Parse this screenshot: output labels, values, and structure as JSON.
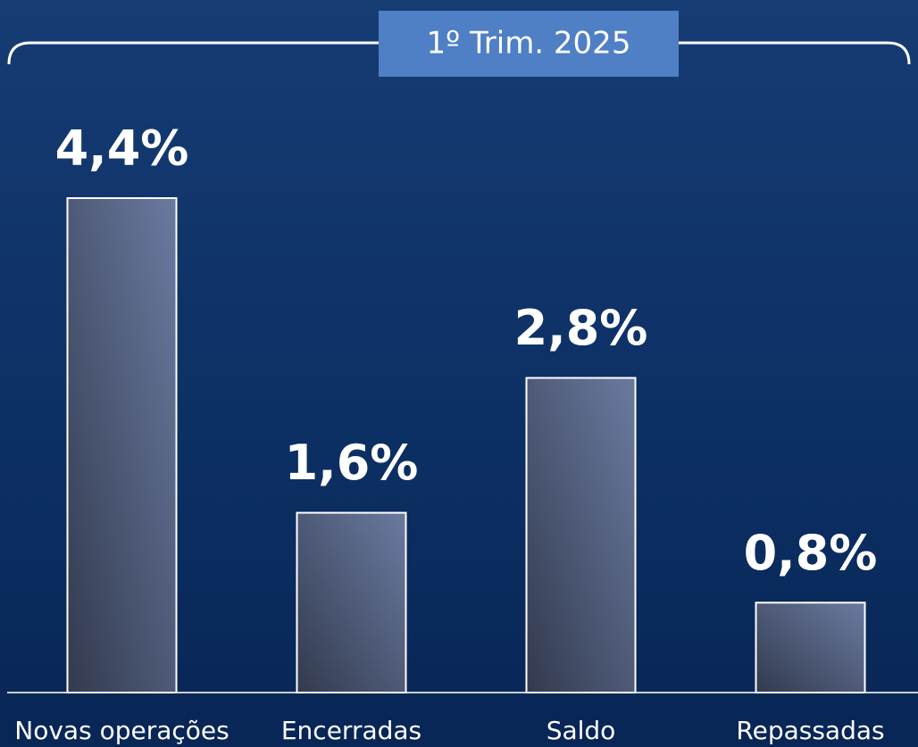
{
  "chart_data": {
    "type": "bar",
    "title": "1º Trim. 2025",
    "categories": [
      "Novas operações",
      "Encerradas",
      "Saldo",
      "Repassadas"
    ],
    "values": [
      4.4,
      1.6,
      2.8,
      0.8
    ],
    "value_labels": [
      "4,4%",
      "1,6%",
      "2,8%",
      "0,8%"
    ],
    "color": "#6a7aa0"
  }
}
